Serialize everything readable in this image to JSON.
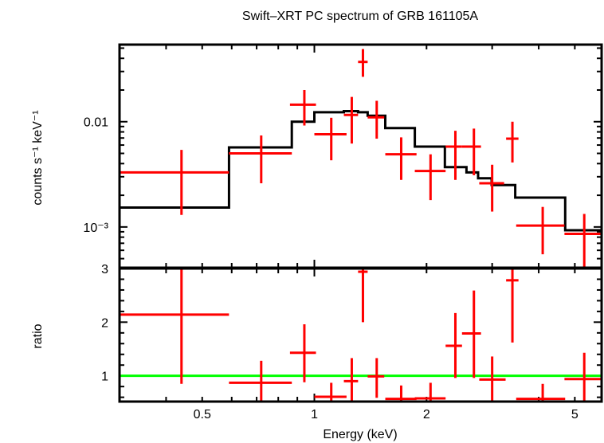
{
  "chart_data": [
    {
      "panel": "spectrum",
      "type": "scatter",
      "title": "Swift–XRT PC spectrum of GRB 161105A",
      "xlabel": "Energy (keV)",
      "ylabel": "counts s⁻¹ keV⁻¹",
      "xscale": "log",
      "yscale": "log",
      "xlim": [
        0.3,
        5.9
      ],
      "ylim": [
        0.00041,
        0.054
      ],
      "x_tick_labels": [
        "0.5",
        "1",
        "2",
        "5"
      ],
      "x_ticks": [
        0.5,
        1,
        2,
        5
      ],
      "y_tick_labels": [
        "0.01",
        "10⁻³"
      ],
      "y_ticks": [
        0.01,
        0.001
      ],
      "colors": {
        "data": "#ff0000",
        "model": "#000000"
      },
      "series": [
        {
          "name": "data",
          "points": [
            {
              "x": 0.44,
              "xlo": 0.3,
              "xhi": 0.59,
              "y": 0.0033,
              "ylo": 0.0013,
              "yhi": 0.0054
            },
            {
              "x": 0.72,
              "xlo": 0.59,
              "xhi": 0.87,
              "y": 0.005,
              "ylo": 0.0026,
              "yhi": 0.0074
            },
            {
              "x": 0.94,
              "xlo": 0.86,
              "xhi": 1.01,
              "y": 0.0145,
              "ylo": 0.0092,
              "yhi": 0.02
            },
            {
              "x": 1.11,
              "xlo": 1.0,
              "xhi": 1.22,
              "y": 0.0076,
              "ylo": 0.0043,
              "yhi": 0.0109
            },
            {
              "x": 1.26,
              "xlo": 1.2,
              "xhi": 1.31,
              "y": 0.0116,
              "ylo": 0.0062,
              "yhi": 0.0172
            },
            {
              "x": 1.35,
              "xlo": 1.31,
              "xhi": 1.39,
              "y": 0.037,
              "ylo": 0.0267,
              "yhi": 0.049
            },
            {
              "x": 1.47,
              "xlo": 1.39,
              "xhi": 1.54,
              "y": 0.011,
              "ylo": 0.0069,
              "yhi": 0.0158
            },
            {
              "x": 1.71,
              "xlo": 1.55,
              "xhi": 1.88,
              "y": 0.0049,
              "ylo": 0.0028,
              "yhi": 0.0071
            },
            {
              "x": 2.05,
              "xlo": 1.86,
              "xhi": 2.25,
              "y": 0.0034,
              "ylo": 0.0018,
              "yhi": 0.0049
            },
            {
              "x": 2.39,
              "xlo": 2.25,
              "xhi": 2.49,
              "y": 0.0058,
              "ylo": 0.0028,
              "yhi": 0.0082
            },
            {
              "x": 2.68,
              "xlo": 2.49,
              "xhi": 2.8,
              "y": 0.0058,
              "ylo": 0.0031,
              "yhi": 0.0086
            },
            {
              "x": 3.0,
              "xlo": 2.77,
              "xhi": 3.23,
              "y": 0.0026,
              "ylo": 0.0014,
              "yhi": 0.0039
            },
            {
              "x": 3.4,
              "xlo": 3.27,
              "xhi": 3.53,
              "y": 0.0069,
              "ylo": 0.0041,
              "yhi": 0.01
            },
            {
              "x": 4.1,
              "xlo": 3.48,
              "xhi": 4.69,
              "y": 0.00103,
              "ylo": 0.00055,
              "yhi": 0.00155
            },
            {
              "x": 5.3,
              "xlo": 4.69,
              "xhi": 5.9,
              "y": 0.00086,
              "ylo": 0.0004,
              "yhi": 0.00133
            }
          ]
        },
        {
          "name": "model",
          "steps": [
            {
              "xlo": 0.3,
              "xhi": 0.59,
              "y": 0.00153
            },
            {
              "xlo": 0.59,
              "xhi": 0.87,
              "y": 0.0057
            },
            {
              "xlo": 0.87,
              "xhi": 1.0,
              "y": 0.01
            },
            {
              "xlo": 1.0,
              "xhi": 1.2,
              "y": 0.0123
            },
            {
              "xlo": 1.2,
              "xhi": 1.31,
              "y": 0.0126
            },
            {
              "xlo": 1.31,
              "xhi": 1.39,
              "y": 0.0123
            },
            {
              "xlo": 1.39,
              "xhi": 1.55,
              "y": 0.0114
            },
            {
              "xlo": 1.55,
              "xhi": 1.86,
              "y": 0.0087
            },
            {
              "xlo": 1.86,
              "xhi": 2.24,
              "y": 0.0058
            },
            {
              "xlo": 2.24,
              "xhi": 2.56,
              "y": 0.0037
            },
            {
              "xlo": 2.56,
              "xhi": 2.75,
              "y": 0.0033
            },
            {
              "xlo": 2.75,
              "xhi": 2.99,
              "y": 0.0029
            },
            {
              "xlo": 2.99,
              "xhi": 3.46,
              "y": 0.0025
            },
            {
              "xlo": 3.46,
              "xhi": 4.71,
              "y": 0.0019
            },
            {
              "xlo": 4.71,
              "xhi": 5.9,
              "y": 0.00093
            }
          ]
        }
      ]
    },
    {
      "panel": "ratio",
      "type": "scatter",
      "xlabel": "Energy (keV)",
      "ylabel": "ratio",
      "xscale": "log",
      "xlim": [
        0.3,
        5.9
      ],
      "ylim": [
        0.52,
        3.0
      ],
      "x_tick_labels": [
        "0.5",
        "1",
        "2",
        "5"
      ],
      "x_ticks": [
        0.5,
        1,
        2,
        5
      ],
      "y_tick_labels": [
        "1",
        "2",
        "3"
      ],
      "y_ticks": [
        1,
        2,
        3
      ],
      "colors": {
        "data": "#ff0000",
        "reference": "#00ff00"
      },
      "reference_line": 1,
      "series": [
        {
          "name": "ratio",
          "points": [
            {
              "x": 0.44,
              "xlo": 0.3,
              "xhi": 0.59,
              "y": 2.14,
              "ylo": 0.85,
              "yhi": 3.5
            },
            {
              "x": 0.72,
              "xlo": 0.59,
              "xhi": 0.87,
              "y": 0.87,
              "ylo": 0.45,
              "yhi": 1.28
            },
            {
              "x": 0.94,
              "xlo": 0.86,
              "xhi": 1.01,
              "y": 1.43,
              "ylo": 0.88,
              "yhi": 1.96
            },
            {
              "x": 1.11,
              "xlo": 1.0,
              "xhi": 1.22,
              "y": 0.61,
              "ylo": 0.35,
              "yhi": 0.87
            },
            {
              "x": 1.26,
              "xlo": 1.2,
              "xhi": 1.31,
              "y": 0.9,
              "ylo": 0.48,
              "yhi": 1.33
            },
            {
              "x": 1.35,
              "xlo": 1.31,
              "xhi": 1.39,
              "y": 2.94,
              "ylo": 2.0,
              "yhi": 3.9
            },
            {
              "x": 1.47,
              "xlo": 1.39,
              "xhi": 1.54,
              "y": 0.99,
              "ylo": 0.59,
              "yhi": 1.33
            },
            {
              "x": 1.71,
              "xlo": 1.55,
              "xhi": 1.88,
              "y": 0.57,
              "ylo": 0.32,
              "yhi": 0.82
            },
            {
              "x": 2.05,
              "xlo": 1.86,
              "xhi": 2.25,
              "y": 0.58,
              "ylo": 0.31,
              "yhi": 0.87
            },
            {
              "x": 2.39,
              "xlo": 2.25,
              "xhi": 2.49,
              "y": 1.56,
              "ylo": 0.96,
              "yhi": 2.17
            },
            {
              "x": 2.68,
              "xlo": 2.49,
              "xhi": 2.8,
              "y": 1.79,
              "ylo": 0.96,
              "yhi": 2.59
            },
            {
              "x": 3.0,
              "xlo": 2.77,
              "xhi": 3.26,
              "y": 0.93,
              "ylo": 0.48,
              "yhi": 1.36
            },
            {
              "x": 3.4,
              "xlo": 3.27,
              "xhi": 3.53,
              "y": 2.78,
              "ylo": 1.62,
              "yhi": 3.9
            },
            {
              "x": 4.1,
              "xlo": 3.48,
              "xhi": 4.71,
              "y": 0.57,
              "ylo": 0.3,
              "yhi": 0.85
            },
            {
              "x": 5.3,
              "xlo": 4.69,
              "xhi": 5.9,
              "y": 0.94,
              "ylo": 0.48,
              "yhi": 1.43
            }
          ]
        }
      ]
    }
  ]
}
